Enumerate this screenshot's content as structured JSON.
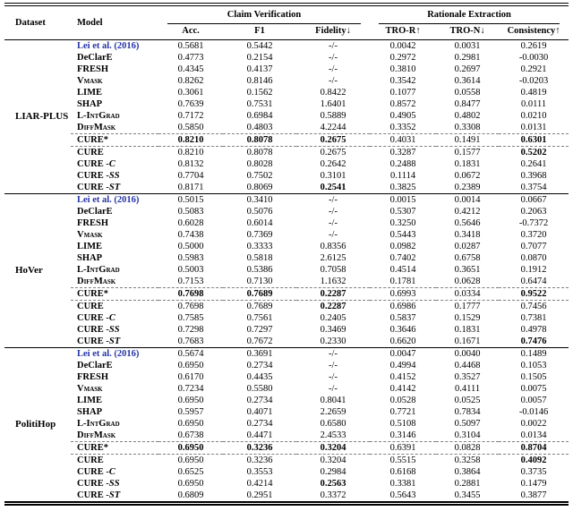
{
  "paper_table": {
    "headers": {
      "dataset": "Dataset",
      "model": "Model",
      "claim_verification": "Claim Verification",
      "rationale_extraction": "Rationale Extraction",
      "subcolumns": [
        "Acc.",
        "F1",
        "Fidelity↓",
        "TRO-R↑",
        "TRO-N↓",
        "Consistency↑"
      ]
    },
    "colors": {
      "citation_blue": "#2433A6",
      "text_black": "#000000",
      "dashed_rule_gray": "#808080"
    },
    "datasets": [
      {
        "name": "LIAR-PLUS",
        "rows": [
          {
            "model": "Lei et al. (2016)",
            "style": "cite",
            "values": [
              "0.5681",
              "0.5442",
              "-/-",
              "0.0042",
              "0.0031",
              "0.2619"
            ],
            "bold": []
          },
          {
            "model": "DeClarE",
            "values": [
              "0.4773",
              "0.2154",
              "-/-",
              "0.2972",
              "0.2981",
              "-0.0030"
            ],
            "bold": []
          },
          {
            "model": "FRESH",
            "values": [
              "0.4345",
              "0.4137",
              "-/-",
              "0.3810",
              "0.2697",
              "0.2921"
            ],
            "bold": []
          },
          {
            "model": "Vmask",
            "style": "smallcaps",
            "values": [
              "0.8262",
              "0.8146",
              "-/-",
              "0.3542",
              "0.3614",
              "-0.0203"
            ],
            "bold": []
          },
          {
            "model": "LIME",
            "values": [
              "0.3061",
              "0.1562",
              "0.8422",
              "0.1077",
              "0.0558",
              "0.4819"
            ],
            "bold": []
          },
          {
            "model": "SHAP",
            "values": [
              "0.7639",
              "0.7531",
              "1.6401",
              "0.8572",
              "0.8477",
              "0.0111"
            ],
            "bold": []
          },
          {
            "model": "L-IntGrad",
            "style": "smallcaps",
            "values": [
              "0.7172",
              "0.6984",
              "0.5889",
              "0.4905",
              "0.4802",
              "0.0210"
            ],
            "bold": []
          },
          {
            "model": "DiffMask",
            "style": "smallcaps",
            "values": [
              "0.5850",
              "0.4803",
              "4.2244",
              "0.3352",
              "0.3308",
              "0.0131"
            ],
            "bold": []
          },
          {
            "model": "CURE*",
            "dashed": true,
            "values": [
              "0.8210",
              "0.8078",
              "0.2675",
              "0.4031",
              "0.1491",
              "0.6301"
            ],
            "bold": [
              0,
              1,
              2,
              5
            ]
          },
          {
            "model": "CURE",
            "values": [
              "0.8210",
              "0.8078",
              "0.2675",
              "0.3287",
              "0.1577",
              "0.5202"
            ],
            "bold": [
              5
            ]
          },
          {
            "model": "CURE",
            "suffix": "-C",
            "values": [
              "0.8132",
              "0.8028",
              "0.2642",
              "0.2488",
              "0.1831",
              "0.2641"
            ],
            "bold": []
          },
          {
            "model": "CURE",
            "suffix": "-SS",
            "values": [
              "0.7704",
              "0.7502",
              "0.3101",
              "0.1114",
              "0.0672",
              "0.3968"
            ],
            "bold": []
          },
          {
            "model": "CURE",
            "suffix": "-ST",
            "values": [
              "0.8171",
              "0.8069",
              "0.2541",
              "0.3825",
              "0.2389",
              "0.3754"
            ],
            "bold": [
              2
            ]
          }
        ]
      },
      {
        "name": "HoVer",
        "rows": [
          {
            "model": "Lei et al. (2016)",
            "style": "cite",
            "values": [
              "0.5015",
              "0.3410",
              "-/-",
              "0.0015",
              "0.0014",
              "0.0667"
            ],
            "bold": []
          },
          {
            "model": "DeClarE",
            "values": [
              "0.5083",
              "0.5076",
              "-/-",
              "0.5307",
              "0.4212",
              "0.2063"
            ],
            "bold": []
          },
          {
            "model": "FRESH",
            "values": [
              "0.6028",
              "0.6014",
              "-/-",
              "0.3250",
              "0.5646",
              "-0.7372"
            ],
            "bold": []
          },
          {
            "model": "Vmask",
            "style": "smallcaps",
            "values": [
              "0.7438",
              "0.7369",
              "-/-",
              "0.5443",
              "0.3418",
              "0.3720"
            ],
            "bold": []
          },
          {
            "model": "LIME",
            "values": [
              "0.5000",
              "0.3333",
              "0.8356",
              "0.0982",
              "0.0287",
              "0.7077"
            ],
            "bold": []
          },
          {
            "model": "SHAP",
            "values": [
              "0.5983",
              "0.5818",
              "2.6125",
              "0.7402",
              "0.6758",
              "0.0870"
            ],
            "bold": []
          },
          {
            "model": "L-IntGrad",
            "style": "smallcaps",
            "values": [
              "0.5003",
              "0.5386",
              "0.7058",
              "0.4514",
              "0.3651",
              "0.1912"
            ],
            "bold": []
          },
          {
            "model": "DiffMask",
            "style": "smallcaps",
            "values": [
              "0.7153",
              "0.7130",
              "1.1632",
              "0.1781",
              "0.0628",
              "0.6474"
            ],
            "bold": []
          },
          {
            "model": "CURE*",
            "dashed": true,
            "values": [
              "0.7698",
              "0.7689",
              "0.2287",
              "0.6993",
              "0.0334",
              "0.9522"
            ],
            "bold": [
              0,
              1,
              2,
              5
            ]
          },
          {
            "model": "CURE",
            "values": [
              "0.7698",
              "0.7689",
              "0.2287",
              "0.6986",
              "0.1777",
              "0.7456"
            ],
            "bold": [
              2
            ]
          },
          {
            "model": "CURE",
            "suffix": "-C",
            "values": [
              "0.7585",
              "0.7561",
              "0.2405",
              "0.5837",
              "0.1529",
              "0.7381"
            ],
            "bold": []
          },
          {
            "model": "CURE",
            "suffix": "-SS",
            "values": [
              "0.7298",
              "0.7297",
              "0.3469",
              "0.3646",
              "0.1831",
              "0.4978"
            ],
            "bold": []
          },
          {
            "model": "CURE",
            "suffix": "-ST",
            "values": [
              "0.7683",
              "0.7672",
              "0.2330",
              "0.6620",
              "0.1671",
              "0.7476"
            ],
            "bold": [
              5
            ]
          }
        ]
      },
      {
        "name": "PolitiHop",
        "rows": [
          {
            "model": "Lei et al. (2016)",
            "style": "cite",
            "values": [
              "0.5674",
              "0.3691",
              "-/-",
              "0.0047",
              "0.0040",
              "0.1489"
            ],
            "bold": []
          },
          {
            "model": "DeClarE",
            "values": [
              "0.6950",
              "0.2734",
              "-/-",
              "0.4994",
              "0.4468",
              "0.1053"
            ],
            "bold": []
          },
          {
            "model": "FRESH",
            "values": [
              "0.6170",
              "0.4435",
              "-/-",
              "0.4152",
              "0.3527",
              "0.1505"
            ],
            "bold": []
          },
          {
            "model": "Vmask",
            "style": "smallcaps",
            "values": [
              "0.7234",
              "0.5580",
              "-/-",
              "0.4142",
              "0.4111",
              "0.0075"
            ],
            "bold": []
          },
          {
            "model": "LIME",
            "values": [
              "0.6950",
              "0.2734",
              "0.8041",
              "0.0528",
              "0.0525",
              "0.0057"
            ],
            "bold": []
          },
          {
            "model": "SHAP",
            "values": [
              "0.5957",
              "0.4071",
              "2.2659",
              "0.7721",
              "0.7834",
              "-0.0146"
            ],
            "bold": []
          },
          {
            "model": "L-IntGrad",
            "style": "smallcaps",
            "values": [
              "0.6950",
              "0.2734",
              "0.6580",
              "0.5108",
              "0.5097",
              "0.0022"
            ],
            "bold": []
          },
          {
            "model": "DiffMask",
            "style": "smallcaps",
            "values": [
              "0.6738",
              "0.4471",
              "2.4533",
              "0.3146",
              "0.3104",
              "0.0134"
            ],
            "bold": []
          },
          {
            "model": "CURE*",
            "dashed": true,
            "values": [
              "0.6950",
              "0.3236",
              "0.3204",
              "0.6391",
              "0.0828",
              "0.8704"
            ],
            "bold": [
              0,
              1,
              2,
              5
            ]
          },
          {
            "model": "CURE",
            "values": [
              "0.6950",
              "0.3236",
              "0.3204",
              "0.5515",
              "0.3258",
              "0.4092"
            ],
            "bold": [
              5
            ]
          },
          {
            "model": "CURE",
            "suffix": "-C",
            "values": [
              "0.6525",
              "0.3553",
              "0.2984",
              "0.6168",
              "0.3864",
              "0.3735"
            ],
            "bold": []
          },
          {
            "model": "CURE",
            "suffix": "-SS",
            "values": [
              "0.6950",
              "0.4214",
              "0.2563",
              "0.3381",
              "0.2881",
              "0.1479"
            ],
            "bold": [
              2
            ]
          },
          {
            "model": "CURE",
            "suffix": "-ST",
            "values": [
              "0.6809",
              "0.2951",
              "0.3372",
              "0.5643",
              "0.3455",
              "0.3877"
            ],
            "bold": []
          }
        ]
      }
    ]
  }
}
